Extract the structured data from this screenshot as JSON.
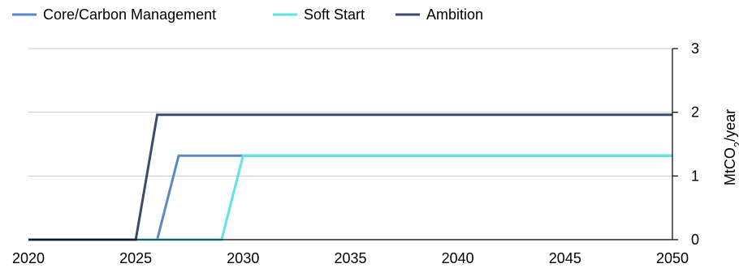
{
  "chart_data": {
    "type": "line",
    "title": "",
    "xlabel": "",
    "ylabel": "MtCO2/year",
    "ylabel_parts": {
      "before": "MtCO",
      "sub": "2",
      "after": "/year"
    },
    "xlim": [
      2020,
      2050
    ],
    "ylim": [
      0,
      3
    ],
    "x_ticks": [
      "2020",
      "2025",
      "2030",
      "2035",
      "2040",
      "2045",
      "2050"
    ],
    "y_ticks": [
      "0",
      "1",
      "2",
      "3"
    ],
    "y_axis_side": "right",
    "grid": "horizontal",
    "legend_position": "top-left",
    "series": [
      {
        "name": "Core/Carbon Management",
        "color": "#5b87c5",
        "x": [
          2020,
          2026,
          2027,
          2050
        ],
        "y": [
          0,
          0,
          1.32,
          1.32
        ]
      },
      {
        "name": "Soft Start",
        "color": "#5fe5e1",
        "x": [
          2020,
          2029,
          2030,
          2050
        ],
        "y": [
          0,
          0,
          1.32,
          1.32
        ]
      },
      {
        "name": "Ambition",
        "color": "#3b4c6b",
        "x": [
          2020,
          2025,
          2026,
          2050
        ],
        "y": [
          0,
          0,
          1.96,
          1.96
        ]
      }
    ]
  }
}
